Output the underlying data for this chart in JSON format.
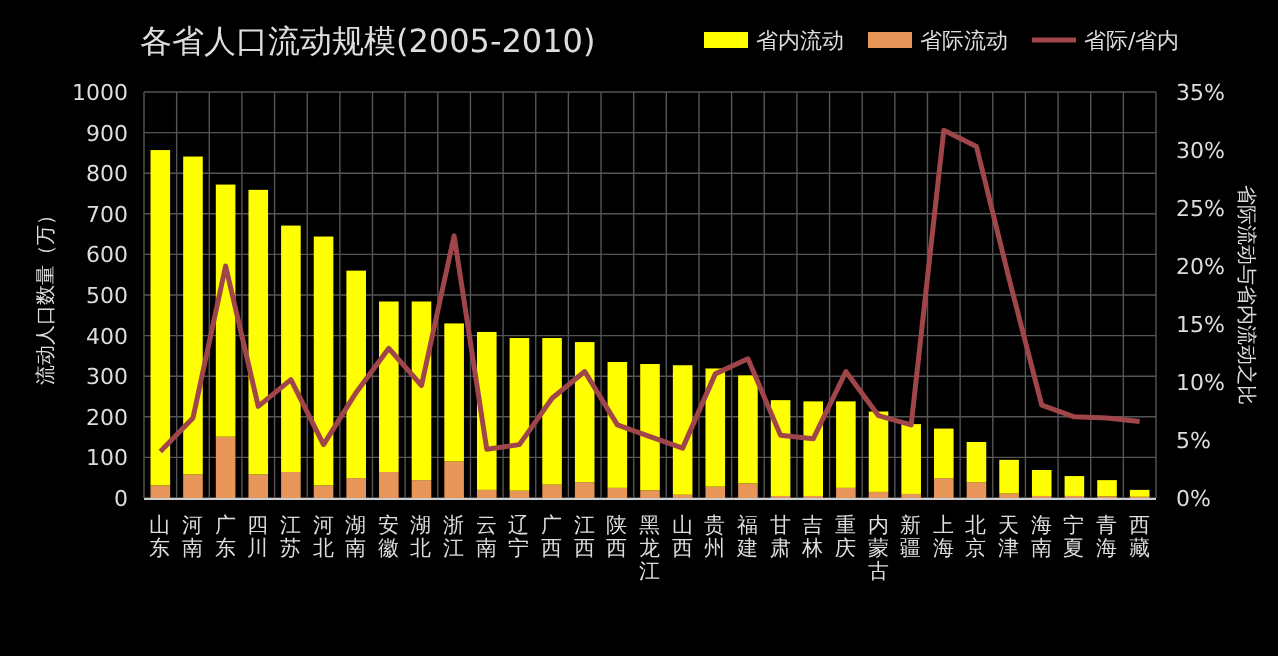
{
  "chart_data": {
    "type": "bar",
    "title": "各省人口流动规模(2005-2010)",
    "ylabel": "流动人口数量（万）",
    "y2label": "省际流动与省内流动之比",
    "categories": [
      "山东",
      "河南",
      "广东",
      "四川",
      "江苏",
      "河北",
      "湖南",
      "安徽",
      "湖北",
      "浙江",
      "云南",
      "辽宁",
      "广西",
      "江西",
      "陕西",
      "黑龙江",
      "山西",
      "贵州",
      "福建",
      "甘肃",
      "吉林",
      "重庆",
      "内蒙古",
      "新疆",
      "上海",
      "北京",
      "天津",
      "海南",
      "宁夏",
      "青海",
      "西藏"
    ],
    "stacked": true,
    "grid": true,
    "legend": "top right",
    "marker": "none",
    "line_style": "solid",
    "ylim": [
      0,
      1000
    ],
    "yticks": [
      0,
      100,
      200,
      300,
      400,
      500,
      600,
      700,
      800,
      900,
      1000
    ],
    "y2lim": [
      0,
      35
    ],
    "y2ticks": [
      {
        "value": 0,
        "label": "0%"
      },
      {
        "value": 5,
        "label": "5%"
      },
      {
        "value": 10,
        "label": "10%"
      },
      {
        "value": 15,
        "label": "15%"
      },
      {
        "value": 20,
        "label": "20%"
      },
      {
        "value": 25,
        "label": "25%"
      },
      {
        "value": 30,
        "label": "30%"
      },
      {
        "value": 35,
        "label": "35%"
      }
    ],
    "series": [
      {
        "name": "省际流动",
        "color": "#e8955a",
        "values": [
          31,
          58,
          151,
          58,
          64,
          31,
          49,
          64,
          44,
          90,
          20,
          18,
          33,
          39,
          25,
          19,
          8,
          28,
          36,
          5,
          5,
          25,
          15,
          10,
          49,
          39,
          11,
          5,
          5,
          4,
          3
        ]
      },
      {
        "name": "省内流动",
        "color": "#ffff00",
        "values": [
          826,
          783,
          621,
          701,
          607,
          613,
          511,
          420,
          440,
          340,
          389,
          376,
          361,
          345,
          310,
          311,
          319,
          291,
          266,
          236,
          233,
          213,
          198,
          172,
          122,
          99,
          83,
          64,
          49,
          40,
          17
        ]
      },
      {
        "name": "省际/省内",
        "type": "line",
        "axis": "y2",
        "color": "#a0454a",
        "values": [
          4.0,
          6.9,
          20.0,
          7.9,
          10.2,
          4.6,
          9.1,
          12.9,
          9.7,
          22.6,
          4.2,
          4.6,
          8.6,
          10.9,
          6.3,
          5.3,
          4.3,
          10.7,
          12.0,
          5.4,
          5.1,
          10.9,
          7.1,
          6.3,
          31.7,
          30.3,
          18.9,
          8.0,
          7.0,
          6.9,
          6.6
        ]
      }
    ]
  }
}
